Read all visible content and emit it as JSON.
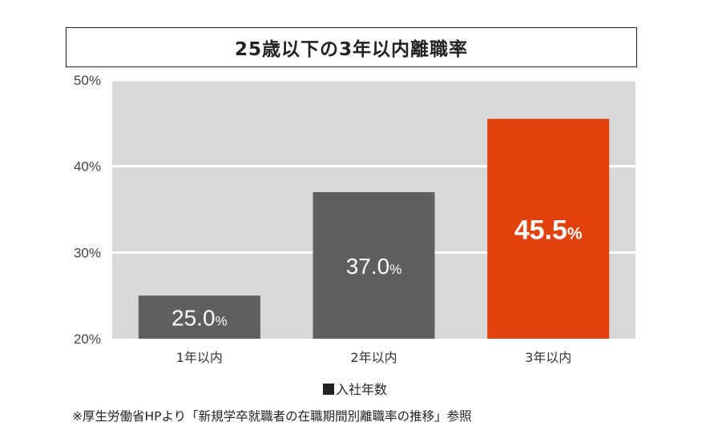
{
  "chart_data": {
    "type": "bar",
    "title": "25歳以下の3年以内離職率",
    "categories": [
      "1年以内",
      "2年以内",
      "3年以内"
    ],
    "values": [
      25.0,
      37.0,
      45.5
    ],
    "value_labels": [
      "25.0",
      "37.0",
      "45.5"
    ],
    "value_unit": "%",
    "ylim": [
      20,
      50
    ],
    "yticks": [
      "20%",
      "30%",
      "40%",
      "50%"
    ],
    "ytick_values": [
      20,
      30,
      40,
      50
    ],
    "grid": true,
    "legend": "■入社年数",
    "bar_colors": [
      "#5f5f5f",
      "#5f5f5f",
      "#e0410d"
    ],
    "plot_background": "#d8d8d8",
    "source": "※厚生労働省HPより「新規学卒就職者の在職期間別離職率の推移」参照"
  }
}
